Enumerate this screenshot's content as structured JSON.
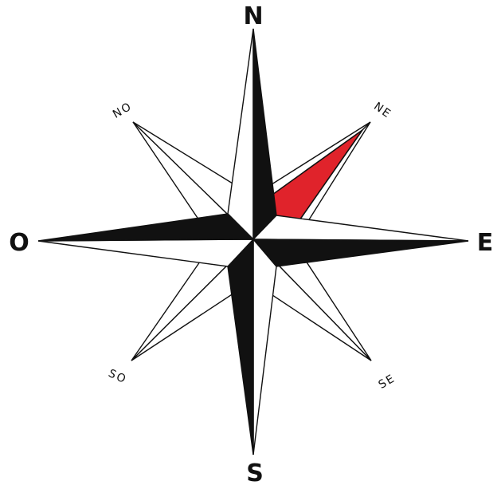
{
  "labels": {
    "north": "N",
    "south": "S",
    "east": "E",
    "west": "O",
    "northeast": "NE",
    "northwest": "NO",
    "southeast": "SE",
    "southwest": "SO"
  },
  "highlighted_direction": "northeast",
  "colors": {
    "ink": "#111111",
    "paper": "#ffffff",
    "highlight": "#e0232b"
  }
}
